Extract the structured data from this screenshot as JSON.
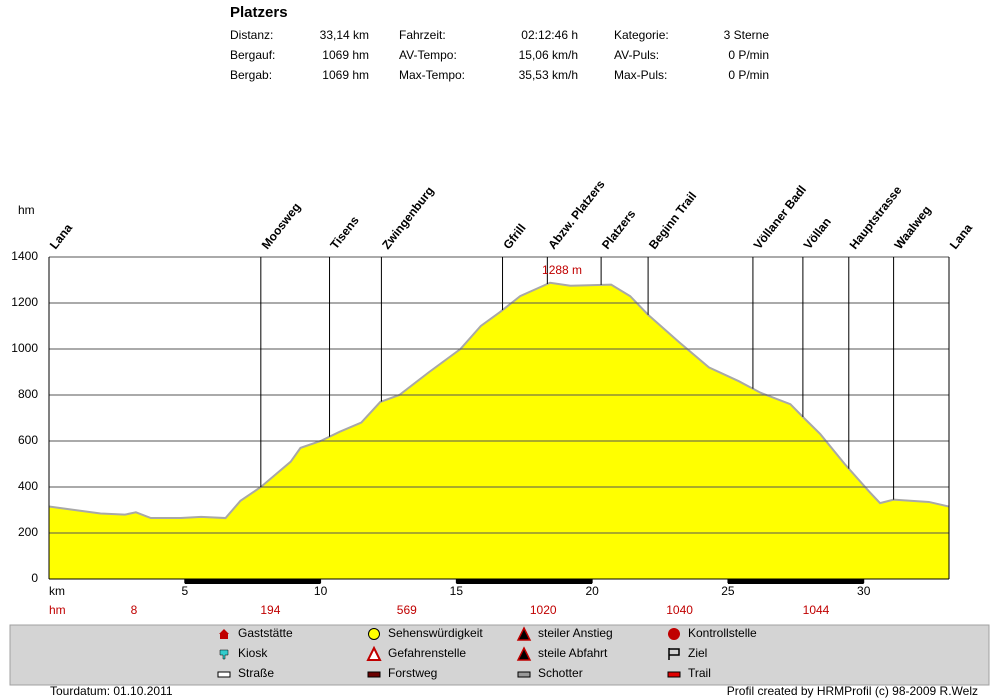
{
  "header": {
    "title": "Platzers",
    "stats": [
      [
        "Distanz:",
        "33,14 km",
        "Fahrzeit:",
        "02:12:46 h",
        "Kategorie:",
        "3 Sterne"
      ],
      [
        "Bergauf:",
        "1069 hm",
        "AV-Tempo:",
        "15,06 km/h",
        "AV-Puls:",
        "0 P/min"
      ],
      [
        "Bergab:",
        "1069 hm",
        "Max-Tempo:",
        "35,53 km/h",
        "Max-Puls:",
        "0 P/min"
      ]
    ]
  },
  "chart_data": {
    "type": "area",
    "x_label": "km",
    "y_label": "hm",
    "x": [
      0,
      1.9,
      2.8,
      3.2,
      3.75,
      4.85,
      5.6,
      6.5,
      7.05,
      7.8,
      8.9,
      9.26,
      10,
      10.7,
      11.5,
      12.2,
      12.9,
      14,
      15.15,
      15.9,
      16.6,
      17.35,
      18.45,
      19.2,
      20.7,
      21.4,
      22.05,
      23.2,
      24.3,
      25.4,
      26.2,
      27.3,
      27.8,
      28.4,
      29.3,
      30.2,
      30.6,
      31.1,
      32.4,
      33.14
    ],
    "values": [
      315,
      285,
      280,
      290,
      265,
      265,
      270,
      265,
      340,
      400,
      510,
      570,
      600,
      640,
      680,
      770,
      800,
      900,
      1000,
      1100,
      1160,
      1230,
      1288,
      1275,
      1280,
      1230,
      1150,
      1030,
      920,
      860,
      810,
      760,
      700,
      630,
      500,
      380,
      330,
      345,
      335,
      315
    ],
    "color": "#ffff00",
    "line_color": "#a8a8a8",
    "xlim": [
      0,
      33.14
    ],
    "ylim": [
      0,
      1400
    ],
    "xticks": [
      5,
      10,
      15,
      20,
      25,
      30
    ],
    "yticks": [
      0,
      200,
      400,
      600,
      800,
      1000,
      1200,
      1400
    ],
    "grid": true,
    "annotations": [
      {
        "x": 18.45,
        "y": 1288,
        "label": "1288 m"
      }
    ],
    "waypoints": [
      {
        "name": "Lana",
        "km": 0
      },
      {
        "name": "Moosweg",
        "km": 7.8
      },
      {
        "name": "Tisens",
        "km": 10.33
      },
      {
        "name": "Zwingenburg",
        "km": 12.24
      },
      {
        "name": "Gfrill",
        "km": 16.7
      },
      {
        "name": "Abzw. Platzers",
        "km": 18.35
      },
      {
        "name": "Platzers",
        "km": 20.33
      },
      {
        "name": "Beginn Trail",
        "km": 22.06
      },
      {
        "name": "Völlaner Badl",
        "km": 25.92
      },
      {
        "name": "Völlan",
        "km": 27.76
      },
      {
        "name": "Hauptstrasse",
        "km": 29.45
      },
      {
        "name": "Waalweg",
        "km": 31.1
      },
      {
        "name": "Lana",
        "km": 33.14
      }
    ],
    "climb": {
      "label": "hm",
      "values": [
        8,
        194,
        569,
        1020,
        1040,
        1044
      ]
    }
  },
  "legend": [
    "Gaststätte",
    "Kiosk",
    "Straße",
    "Sehenswürdigkeit",
    "Gefahrenstelle",
    "Forstweg",
    "steiler Anstieg",
    "steile Abfahrt",
    "Schotter",
    "Kontrollstelle",
    "Ziel",
    "Trail"
  ],
  "footer": {
    "date": "Tourdatum: 01.10.2011",
    "credit": "Profil created by HRMProfil (c) 98-2009 R.Welz"
  }
}
